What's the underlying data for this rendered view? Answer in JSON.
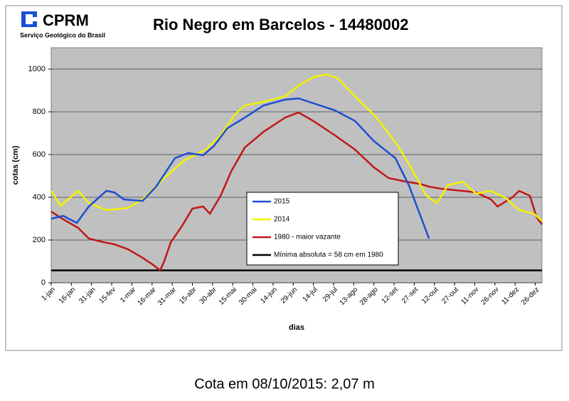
{
  "header": {
    "logo": "CPRM",
    "logo_subtitle": "Serviço Geológico do Brasil"
  },
  "caption": "Cota em 08/10/2015: 2,07 m",
  "chart_data": {
    "type": "line",
    "title": "Rio Negro em Barcelos -  14480002",
    "x_label": "dias",
    "y_label": "cotas (cm)",
    "xlim": [
      1,
      366
    ],
    "ylim": [
      0,
      1100
    ],
    "xticks": [
      {
        "value": 1,
        "label": "1-jan"
      },
      {
        "value": 16,
        "label": "16-jan"
      },
      {
        "value": 31,
        "label": "31-jan"
      },
      {
        "value": 46,
        "label": "15-fev"
      },
      {
        "value": 61,
        "label": "1-mar"
      },
      {
        "value": 76,
        "label": "16-mar"
      },
      {
        "value": 91,
        "label": "31-mar"
      },
      {
        "value": 106,
        "label": "15-abr"
      },
      {
        "value": 121,
        "label": "30-abr"
      },
      {
        "value": 136,
        "label": "15-mai"
      },
      {
        "value": 151,
        "label": "30-mai"
      },
      {
        "value": 166,
        "label": "14-jun"
      },
      {
        "value": 181,
        "label": "29-jun"
      },
      {
        "value": 196,
        "label": "14-jul"
      },
      {
        "value": 211,
        "label": "29-jul"
      },
      {
        "value": 226,
        "label": "13-ago"
      },
      {
        "value": 241,
        "label": "28-ago"
      },
      {
        "value": 256,
        "label": "12-set"
      },
      {
        "value": 271,
        "label": "27-set"
      },
      {
        "value": 286,
        "label": "12-out"
      },
      {
        "value": 301,
        "label": "27-out"
      },
      {
        "value": 316,
        "label": "11-nov"
      },
      {
        "value": 331,
        "label": "26-nov"
      },
      {
        "value": 346,
        "label": "11-dez"
      },
      {
        "value": 361,
        "label": "26-dez"
      }
    ],
    "yticks": [
      0,
      200,
      400,
      600,
      800,
      1000
    ],
    "grid": true,
    "series": [
      {
        "name": "2015",
        "color": "#1f4fd0",
        "x": [
          1,
          10,
          20,
          29,
          42,
          48,
          55,
          69,
          79,
          93,
          103,
          114,
          122,
          132,
          145,
          159,
          175,
          185,
          196,
          212,
          227,
          241,
          257,
          267,
          275,
          282
        ],
        "values": [
          300,
          313,
          280,
          357,
          430,
          423,
          390,
          383,
          450,
          583,
          607,
          597,
          640,
          723,
          773,
          830,
          857,
          863,
          840,
          807,
          757,
          663,
          583,
          457,
          323,
          207
        ]
      },
      {
        "name": "2014",
        "color": "#f2f200",
        "x": [
          1,
          8,
          21,
          29,
          42,
          58,
          69,
          85,
          100,
          116,
          127,
          138,
          145,
          159,
          175,
          185,
          196,
          206,
          214,
          227,
          243,
          259,
          270,
          280,
          288,
          296,
          307,
          317,
          328,
          339,
          349,
          360,
          366
        ],
        "values": [
          430,
          360,
          430,
          373,
          340,
          350,
          390,
          490,
          573,
          623,
          690,
          790,
          830,
          847,
          873,
          923,
          963,
          975,
          957,
          873,
          773,
          640,
          523,
          407,
          373,
          457,
          473,
          417,
          430,
          397,
          340,
          323,
          290
        ]
      },
      {
        "name": "1980 - maior vazante",
        "color": "#c01818",
        "x": [
          1,
          10,
          21,
          29,
          40,
          48,
          58,
          69,
          77,
          82,
          85,
          90,
          98,
          106,
          114,
          119,
          127,
          135,
          145,
          159,
          175,
          185,
          196,
          212,
          227,
          241,
          252,
          265,
          275,
          282,
          291,
          307,
          317,
          328,
          333,
          344,
          349,
          357,
          362,
          366
        ],
        "values": [
          333,
          297,
          257,
          207,
          190,
          180,
          157,
          117,
          83,
          58,
          100,
          190,
          263,
          347,
          357,
          323,
          407,
          523,
          633,
          707,
          773,
          797,
          757,
          690,
          623,
          540,
          490,
          473,
          463,
          450,
          440,
          430,
          423,
          390,
          357,
          400,
          430,
          407,
          307,
          273
        ]
      },
      {
        "name": "Mínima absoluta = 58 cm em 1980",
        "color": "#000000",
        "x": [
          1,
          366
        ],
        "values": [
          58,
          58
        ]
      }
    ]
  }
}
